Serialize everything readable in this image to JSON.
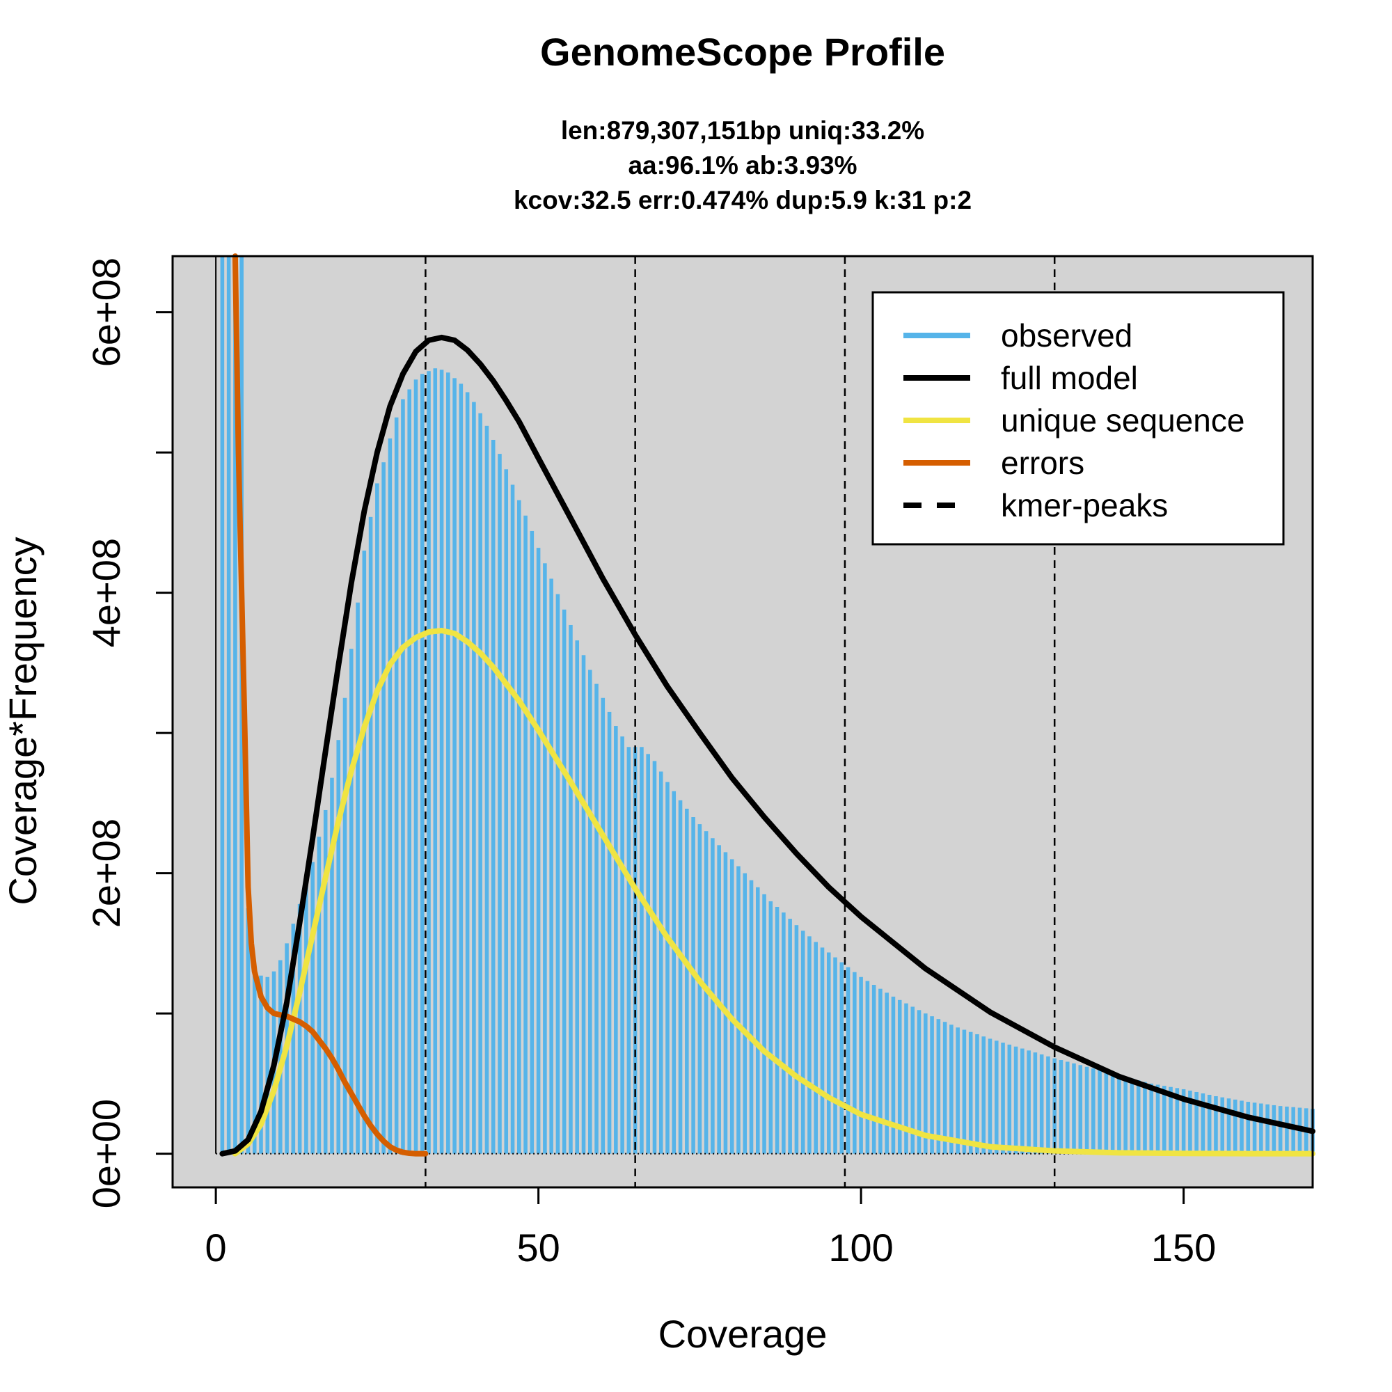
{
  "chart_data": {
    "type": "bar",
    "title": "GenomeScope Profile",
    "subtitle_lines": [
      "len:879,307,151bp uniq:33.2%",
      "aa:96.1% ab:3.93%",
      "kcov:32.5 err:0.474%  dup:5.9  k:31 p:2"
    ],
    "xlabel": "Coverage",
    "ylabel": "Coverage*Frequency",
    "xlim": [
      -6.7,
      170
    ],
    "ylim": [
      -24000000,
      640000000
    ],
    "x_ticks": [
      0,
      50,
      100,
      150
    ],
    "x_tick_labels": [
      "0",
      "50",
      "100",
      "150"
    ],
    "y_ticks": [
      0,
      100000000,
      200000000,
      300000000,
      400000000,
      500000000,
      600000000
    ],
    "y_tick_labels": [
      "0e+00",
      "",
      "2e+08",
      "",
      "4e+08",
      "",
      "6e+08"
    ],
    "kmer_peaks": [
      32.5,
      65,
      97.5,
      130
    ],
    "legend_position": "top-right",
    "legend": [
      {
        "label": "observed",
        "color": "#56b4e9",
        "style": "solid"
      },
      {
        "label": "full model",
        "color": "#000000",
        "style": "solid"
      },
      {
        "label": "unique sequence",
        "color": "#f0e442",
        "style": "solid"
      },
      {
        "label": "errors",
        "color": "#d55e00",
        "style": "solid"
      },
      {
        "label": "kmer-peaks",
        "color": "#000000",
        "style": "dashed"
      }
    ],
    "observed": {
      "name": "observed",
      "color": "#56b4e9",
      "x": [
        1,
        2,
        3,
        4,
        5,
        6,
        7,
        8,
        9,
        10,
        11,
        12,
        13,
        14,
        15,
        16,
        17,
        18,
        19,
        20,
        21,
        22,
        23,
        24,
        25,
        26,
        27,
        28,
        29,
        30,
        31,
        32,
        33,
        34,
        35,
        36,
        37,
        38,
        39,
        40,
        41,
        42,
        43,
        44,
        45,
        46,
        47,
        48,
        49,
        50,
        52,
        54,
        56,
        58,
        60,
        62,
        64,
        66,
        68,
        70,
        72,
        74,
        76,
        78,
        80,
        82,
        84,
        86,
        88,
        90,
        92,
        94,
        96,
        98,
        100,
        105,
        110,
        115,
        120,
        125,
        130,
        135,
        140,
        145,
        150,
        155,
        160,
        165,
        170
      ],
      "values": [
        640000000,
        640000000,
        640000000,
        640000000,
        175000000,
        135000000,
        127000000,
        126000000,
        130000000,
        138000000,
        150000000,
        164000000,
        178000000,
        192000000,
        208000000,
        226000000,
        245000000,
        268000000,
        295000000,
        325000000,
        360000000,
        393000000,
        430000000,
        454000000,
        478000000,
        493000000,
        510000000,
        525000000,
        538000000,
        545000000,
        552000000,
        556000000,
        558000000,
        560000000,
        559000000,
        557000000,
        553000000,
        549000000,
        543000000,
        536000000,
        528000000,
        519000000,
        509000000,
        499000000,
        488000000,
        477000000,
        466000000,
        455000000,
        444000000,
        432000000,
        410000000,
        388000000,
        366000000,
        345000000,
        325000000,
        305000000,
        290000000,
        290000000,
        280000000,
        265000000,
        252000000,
        240000000,
        230000000,
        220000000,
        210000000,
        200000000,
        190000000,
        180000000,
        172000000,
        163000000,
        155000000,
        147000000,
        140000000,
        133000000,
        126000000,
        112000000,
        100000000,
        90000000,
        82000000,
        75000000,
        68000000,
        62000000,
        56000000,
        50000000,
        46000000,
        41000000,
        37000000,
        34000000,
        32000000
      ]
    },
    "series": [
      {
        "name": "full model",
        "color": "#000000",
        "x": [
          1,
          3,
          5,
          7,
          9,
          11,
          13,
          15,
          17,
          19,
          21,
          23,
          25,
          27,
          29,
          31,
          33,
          35,
          37,
          39,
          41,
          43,
          45,
          47,
          50,
          55,
          60,
          65,
          70,
          75,
          80,
          85,
          90,
          95,
          100,
          110,
          120,
          130,
          140,
          150,
          160,
          170
        ],
        "values": [
          0,
          2000000,
          10000000,
          30000000,
          63000000,
          108000000,
          165000000,
          225000000,
          287000000,
          348000000,
          407000000,
          458000000,
          500000000,
          533000000,
          556000000,
          572000000,
          580000000,
          582000000,
          580000000,
          573000000,
          563000000,
          551000000,
          537000000,
          522000000,
          496000000,
          453000000,
          410000000,
          370000000,
          333000000,
          300000000,
          268000000,
          240000000,
          214000000,
          190000000,
          169000000,
          132000000,
          101000000,
          76000000,
          55000000,
          39000000,
          26000000,
          16000000
        ]
      },
      {
        "name": "unique sequence",
        "color": "#f0e442",
        "x": [
          3,
          5,
          7,
          9,
          11,
          13,
          15,
          17,
          19,
          21,
          23,
          25,
          27,
          29,
          31,
          33,
          35,
          37,
          39,
          41,
          43,
          45,
          47,
          50,
          55,
          60,
          65,
          70,
          75,
          80,
          85,
          90,
          95,
          100,
          110,
          120,
          130,
          140,
          150,
          160,
          170
        ],
        "values": [
          0,
          7000000,
          21000000,
          45000000,
          77000000,
          115000000,
          156000000,
          197000000,
          237000000,
          273000000,
          304000000,
          330000000,
          349000000,
          361000000,
          368000000,
          372000000,
          373000000,
          371000000,
          365000000,
          357000000,
          347000000,
          335000000,
          323000000,
          302000000,
          265000000,
          227000000,
          189000000,
          154000000,
          123000000,
          96000000,
          73000000,
          55000000,
          40000000,
          28000000,
          13000000,
          5000000,
          2000000,
          600000,
          200000,
          0,
          0
        ]
      },
      {
        "name": "errors",
        "color": "#d55e00",
        "x": [
          3,
          3.5,
          4,
          4.5,
          5,
          5.5,
          6,
          7,
          8,
          9,
          10,
          11,
          12,
          13,
          14,
          15,
          16,
          17,
          18,
          19,
          20,
          21,
          22,
          23,
          24,
          25,
          26,
          27,
          28,
          29,
          30,
          31,
          32.5
        ],
        "values": [
          640000000,
          500000000,
          400000000,
          300000000,
          190000000,
          150000000,
          130000000,
          112000000,
          104000000,
          100000000,
          99000000,
          98000000,
          96000000,
          94000000,
          91000000,
          87000000,
          81000000,
          75000000,
          68000000,
          60000000,
          51000000,
          43000000,
          35000000,
          27000000,
          20000000,
          14000000,
          9000000,
          5000000,
          2500000,
          1000000,
          300000,
          0,
          0
        ]
      }
    ]
  }
}
